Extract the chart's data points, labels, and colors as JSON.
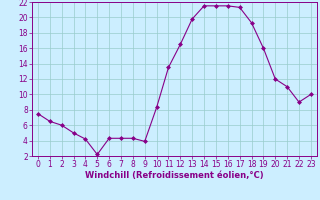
{
  "x_data": [
    0,
    1,
    2,
    3,
    4,
    5,
    6,
    7,
    8,
    9,
    10,
    11,
    12,
    13,
    14,
    15,
    16,
    17,
    18,
    19,
    20,
    21,
    22,
    23
  ],
  "y_data": [
    7.5,
    6.5,
    6.0,
    5.0,
    4.2,
    2.2,
    4.3,
    4.3,
    4.3,
    3.9,
    8.3,
    13.5,
    16.5,
    19.8,
    21.5,
    21.5,
    21.5,
    21.3,
    19.3,
    16.0,
    12.0,
    11.0,
    9.0,
    10.0
  ],
  "line_color": "#880088",
  "marker": "D",
  "marker_size": 2.0,
  "bg_color": "#cceeff",
  "grid_color": "#99cccc",
  "axis_color": "#880088",
  "xlabel": "Windchill (Refroidissement éolien,°C)",
  "xlabel_fontsize": 6.0,
  "tick_fontsize": 5.5,
  "ylim": [
    2,
    22
  ],
  "xlim": [
    -0.5,
    23.5
  ],
  "yticks": [
    2,
    4,
    6,
    8,
    10,
    12,
    14,
    16,
    18,
    20,
    22
  ],
  "xticks": [
    0,
    1,
    2,
    3,
    4,
    5,
    6,
    7,
    8,
    9,
    10,
    11,
    12,
    13,
    14,
    15,
    16,
    17,
    18,
    19,
    20,
    21,
    22,
    23
  ]
}
